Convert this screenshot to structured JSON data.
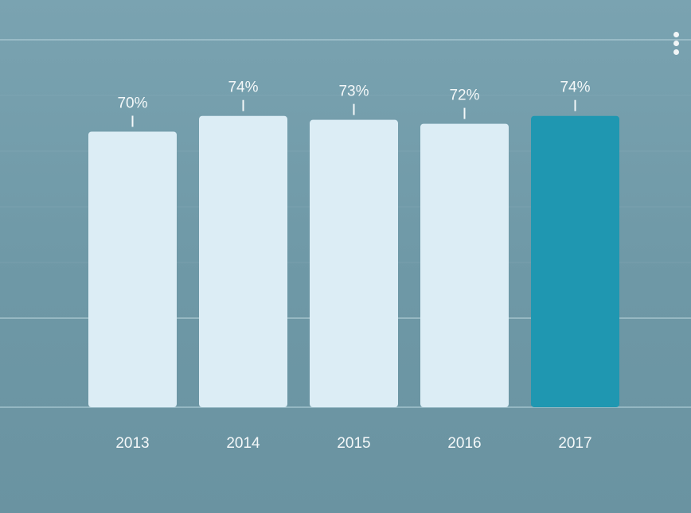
{
  "menu": {
    "icon": "more-vertical-icon"
  },
  "chart_data": {
    "type": "bar",
    "title": "",
    "xlabel": "",
    "ylabel": "",
    "categories": [
      "2013",
      "2014",
      "2015",
      "2016",
      "2017"
    ],
    "values": [
      70,
      74,
      73,
      72,
      74
    ],
    "value_labels": [
      "70%",
      "74%",
      "73%",
      "72%",
      "74%"
    ],
    "ylim": [
      0,
      80
    ],
    "highlight_index": 4,
    "grid": true,
    "legend": "none",
    "colors": {
      "bar": "#dcedf5",
      "bar_highlight": "#1f97b1",
      "text": "#f4f8f9",
      "gridline": "#a8c7d0"
    }
  }
}
